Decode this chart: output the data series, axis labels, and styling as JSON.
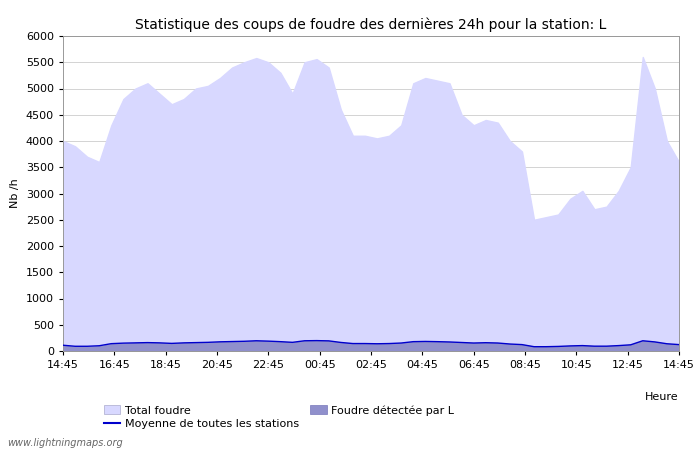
{
  "title": "Statistique des coups de foudre des dernières 24h pour la station: L",
  "xlabel": "Heure",
  "ylabel": "Nb /h",
  "ylim": [
    0,
    6000
  ],
  "yticks": [
    0,
    500,
    1000,
    1500,
    2000,
    2500,
    3000,
    3500,
    4000,
    4500,
    5000,
    5500,
    6000
  ],
  "xtick_labels": [
    "14:45",
    "16:45",
    "18:45",
    "20:45",
    "22:45",
    "00:45",
    "02:45",
    "04:45",
    "06:45",
    "08:45",
    "10:45",
    "12:45",
    "14:45"
  ],
  "watermark": "www.lightningmaps.org",
  "legend_labels": [
    "Total foudre",
    "Moyenne de toutes les stations",
    "Foudre détectée par L"
  ],
  "total_foudre": [
    4000,
    3900,
    3700,
    3600,
    4300,
    4800,
    5000,
    5100,
    4900,
    4700,
    4800,
    5000,
    5050,
    5200,
    5400,
    5500,
    5580,
    5500,
    5300,
    4900,
    5500,
    5560,
    5400,
    4600,
    4100,
    4100,
    4050,
    4100,
    4300,
    5100,
    5200,
    5150,
    5100,
    4500,
    4300,
    4400,
    4350,
    4000,
    3800,
    2500,
    2550,
    2600,
    2900,
    3050,
    2700,
    2750,
    3050,
    3500,
    5600,
    5000,
    4000,
    3600
  ],
  "foudre_detectee": [
    100,
    80,
    80,
    90,
    130,
    140,
    150,
    160,
    150,
    140,
    150,
    160,
    160,
    170,
    175,
    180,
    190,
    185,
    175,
    160,
    190,
    195,
    190,
    160,
    140,
    140,
    135,
    140,
    150,
    175,
    180,
    175,
    170,
    160,
    150,
    155,
    150,
    130,
    120,
    80,
    80,
    85,
    95,
    100,
    90,
    90,
    100,
    115,
    190,
    170,
    135,
    120
  ],
  "moyenne": [
    110,
    90,
    90,
    100,
    140,
    150,
    155,
    160,
    155,
    145,
    155,
    160,
    165,
    175,
    180,
    185,
    195,
    188,
    178,
    165,
    195,
    198,
    193,
    163,
    142,
    142,
    138,
    142,
    152,
    178,
    182,
    178,
    172,
    162,
    152,
    158,
    152,
    133,
    122,
    82,
    82,
    87,
    97,
    103,
    92,
    92,
    103,
    118,
    195,
    173,
    138,
    122
  ],
  "bg_color": "#ffffff",
  "plot_bg_color": "#ffffff",
  "grid_color": "#cccccc",
  "fill_total_color": "#d8d8ff",
  "fill_detected_color": "#9090cc",
  "line_color": "#0000cc",
  "title_fontsize": 10,
  "axis_fontsize": 8,
  "tick_fontsize": 8
}
